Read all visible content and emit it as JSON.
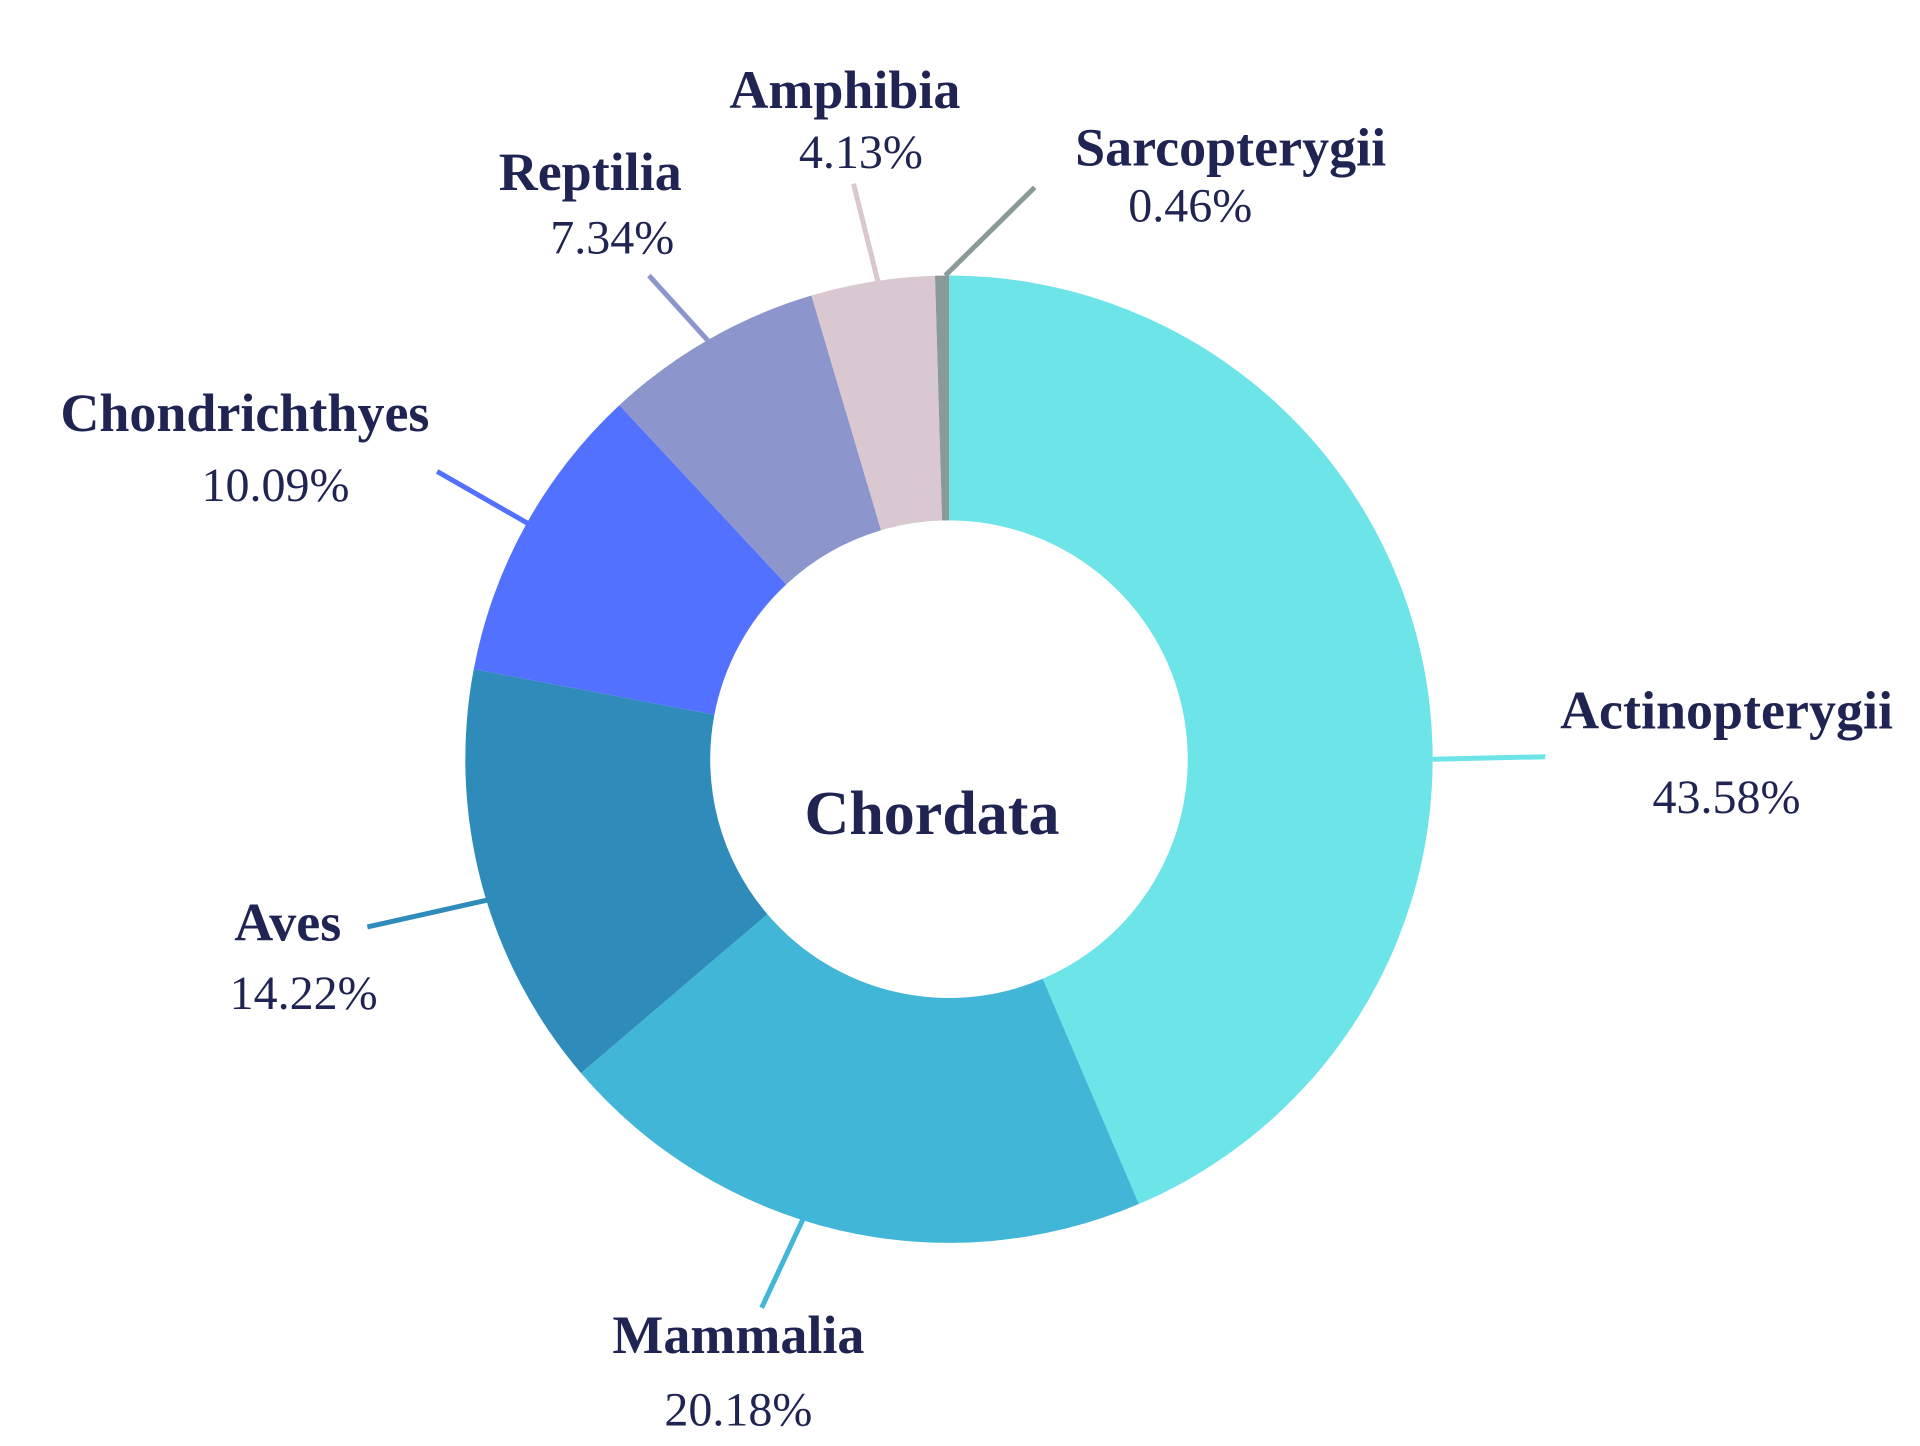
{
  "chart_data": {
    "type": "pie",
    "center_label": "Chordata",
    "categories": [
      "Actinopterygii",
      "Mammalia",
      "Aves",
      "Chondrichthyes",
      "Reptilia",
      "Amphibia",
      "Sarcopterygii"
    ],
    "values": [
      43.58,
      20.18,
      14.22,
      10.09,
      7.34,
      4.13,
      0.46
    ],
    "value_labels": [
      "43.58%",
      "20.18%",
      "14.22%",
      "10.09%",
      "7.34%",
      "4.13%",
      "0.46%"
    ],
    "colors": [
      "#6ce4e8",
      "#42b6d6",
      "#2e8bba",
      "#5271ff",
      "#8c96cc",
      "#d9c8cf",
      "#8a9a98"
    ]
  }
}
